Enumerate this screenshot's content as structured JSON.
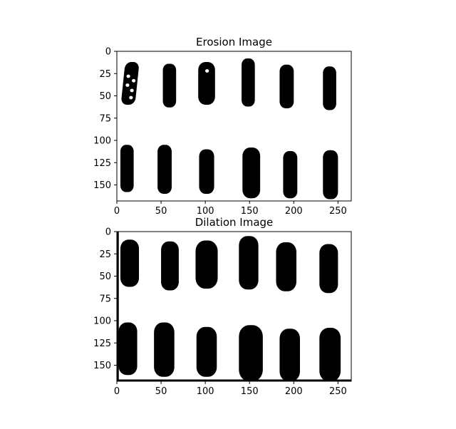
{
  "figure": {
    "background": "#ffffff",
    "ink": "#000000"
  },
  "chart_data": [
    {
      "type": "heatmap",
      "title": "Erosion Image",
      "colormap": "binary: black=foreground, white=background",
      "xlim": [
        0,
        265
      ],
      "ylim": [
        168,
        0
      ],
      "y_axis_inverted": true,
      "xticks": [
        0,
        50,
        100,
        150,
        200,
        250
      ],
      "yticks": [
        0,
        25,
        50,
        75,
        100,
        125,
        150
      ],
      "blobs": [
        {
          "row": "top",
          "x": [
            7,
            23
          ],
          "y": [
            12,
            60
          ],
          "shape": "speckled",
          "holes": [
            [
              12,
              38
            ],
            [
              17,
              44
            ],
            [
              19,
              33
            ],
            [
              13,
              28
            ],
            [
              16,
              52
            ]
          ]
        },
        {
          "row": "top",
          "x": [
            52,
            67
          ],
          "y": [
            14,
            63
          ]
        },
        {
          "row": "top",
          "x": [
            92,
            111
          ],
          "y": [
            12,
            60
          ],
          "holes": [
            [
              102,
              22
            ]
          ]
        },
        {
          "row": "top",
          "x": [
            141,
            156
          ],
          "y": [
            8,
            62
          ]
        },
        {
          "row": "top",
          "x": [
            184,
            200
          ],
          "y": [
            15,
            64
          ]
        },
        {
          "row": "top",
          "x": [
            233,
            248
          ],
          "y": [
            17,
            66
          ]
        },
        {
          "row": "bottom",
          "x": [
            4,
            19
          ],
          "y": [
            105,
            158
          ]
        },
        {
          "row": "bottom",
          "x": [
            46,
            62
          ],
          "y": [
            105,
            160
          ]
        },
        {
          "row": "bottom",
          "x": [
            93,
            110
          ],
          "y": [
            110,
            160
          ]
        },
        {
          "row": "bottom",
          "x": [
            142,
            162
          ],
          "y": [
            108,
            165
          ]
        },
        {
          "row": "bottom",
          "x": [
            188,
            204
          ],
          "y": [
            112,
            165
          ]
        },
        {
          "row": "bottom",
          "x": [
            233,
            250
          ],
          "y": [
            111,
            166
          ]
        }
      ]
    },
    {
      "type": "heatmap",
      "title": "Dilation Image",
      "colormap": "binary: black=foreground, white=background",
      "xlim": [
        0,
        265
      ],
      "ylim": [
        168,
        0
      ],
      "y_axis_inverted": true,
      "xticks": [
        0,
        50,
        100,
        150,
        200,
        250
      ],
      "yticks": [
        0,
        25,
        50,
        75,
        100,
        125,
        150
      ],
      "border_artifacts": [
        "left vertical black stripe x≈0-2 spanning full height",
        "bottom black stripe y≈166-168 spanning full width"
      ],
      "blobs": [
        {
          "row": "top",
          "x": [
            4,
            25
          ],
          "y": [
            9,
            62
          ]
        },
        {
          "row": "top",
          "x": [
            50,
            70
          ],
          "y": [
            11,
            66
          ]
        },
        {
          "row": "top",
          "x": [
            89,
            114
          ],
          "y": [
            10,
            64
          ]
        },
        {
          "row": "top",
          "x": [
            138,
            160
          ],
          "y": [
            5,
            65
          ]
        },
        {
          "row": "top",
          "x": [
            180,
            203
          ],
          "y": [
            12,
            67
          ]
        },
        {
          "row": "top",
          "x": [
            229,
            250
          ],
          "y": [
            14,
            69
          ]
        },
        {
          "row": "bottom",
          "x": [
            2,
            23
          ],
          "y": [
            102,
            161
          ]
        },
        {
          "row": "bottom",
          "x": [
            42,
            65
          ],
          "y": [
            102,
            163
          ]
        },
        {
          "row": "bottom",
          "x": [
            90,
            113
          ],
          "y": [
            107,
            163
          ]
        },
        {
          "row": "bottom",
          "x": [
            138,
            165
          ],
          "y": [
            105,
            168
          ]
        },
        {
          "row": "bottom",
          "x": [
            184,
            207
          ],
          "y": [
            109,
            168
          ]
        },
        {
          "row": "bottom",
          "x": [
            229,
            253
          ],
          "y": [
            108,
            168
          ]
        }
      ]
    }
  ]
}
